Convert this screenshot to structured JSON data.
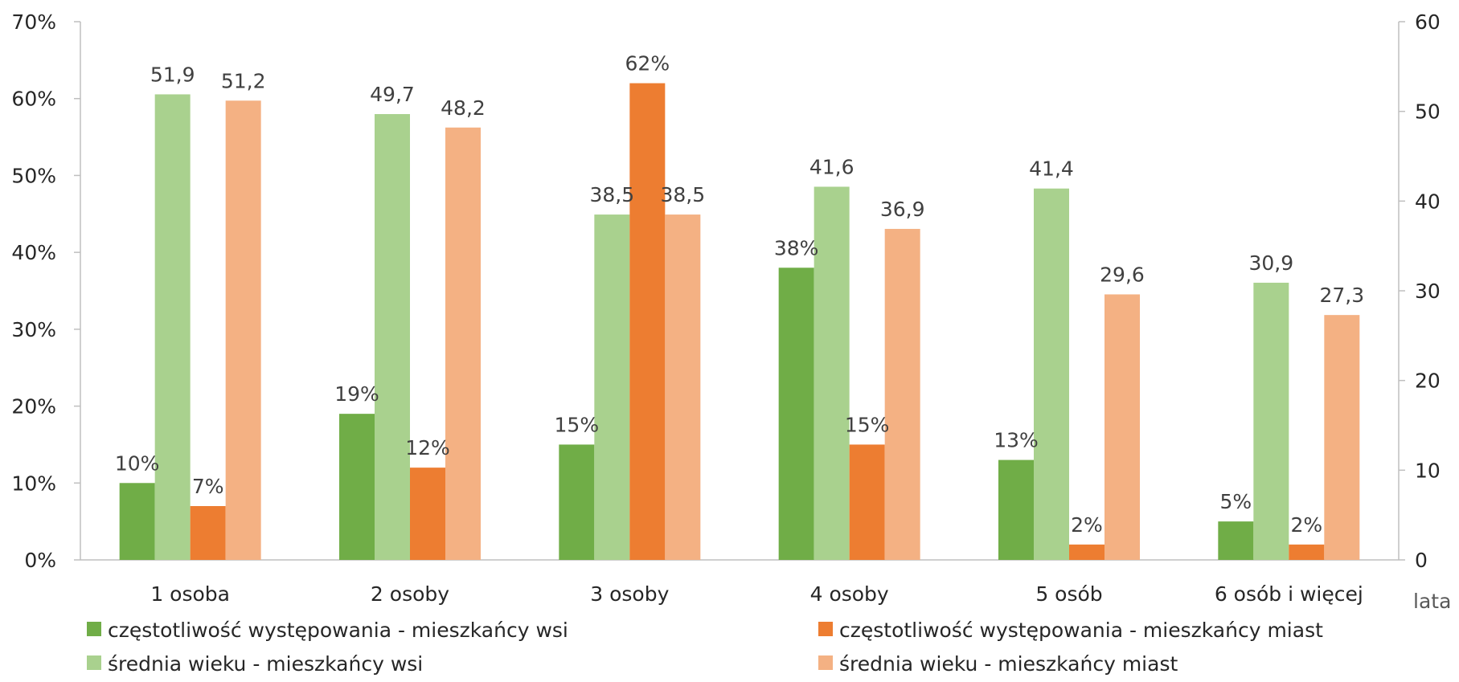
{
  "chart_data": {
    "type": "bar",
    "categories": [
      "1 osoba",
      "2 osoby",
      "3 osoby",
      "4 osoby",
      "5 osób",
      "6 osób i więcej"
    ],
    "series": [
      {
        "name": "częstotliwość występowania - mieszkańcy wsi",
        "axis": "left",
        "values": [
          10,
          19,
          15,
          38,
          13,
          5
        ],
        "labels": [
          "10%",
          "19%",
          "15%",
          "38%",
          "13%",
          "5%"
        ],
        "color": "#70ad47"
      },
      {
        "name": "średnia wieku - mieszkańcy wsi",
        "axis": "right",
        "values": [
          51.9,
          49.7,
          38.5,
          41.6,
          41.4,
          30.9
        ],
        "labels": [
          "51,9",
          "49,7",
          "38,5",
          "41,6",
          "41,4",
          "30,9"
        ],
        "color": "#a9d18e"
      },
      {
        "name": "częstotliwość występowania - mieszkańcy miast",
        "axis": "left",
        "values": [
          7,
          12,
          62,
          15,
          2,
          2
        ],
        "labels": [
          "7%",
          "12%",
          "62%",
          "15%",
          "2%",
          "2%"
        ],
        "color": "#ed7d31"
      },
      {
        "name": "średnia wieku - mieszkańcy miast",
        "axis": "right",
        "values": [
          51.2,
          48.2,
          38.5,
          36.9,
          29.6,
          27.3
        ],
        "labels": [
          "51,2",
          "48,2",
          "38,5",
          "36,9",
          "29,6",
          "27,3"
        ],
        "color": "#f4b183"
      }
    ],
    "y_left": {
      "min": 0,
      "max": 70,
      "ticks": [
        "0%",
        "10%",
        "20%",
        "30%",
        "40%",
        "50%",
        "60%",
        "70%"
      ]
    },
    "y_right": {
      "min": 0,
      "max": 60,
      "ticks": [
        "0",
        "10",
        "20",
        "30",
        "40",
        "50",
        "60"
      ],
      "unit_label": "lata"
    },
    "legend_position": "bottom",
    "grid": false
  }
}
